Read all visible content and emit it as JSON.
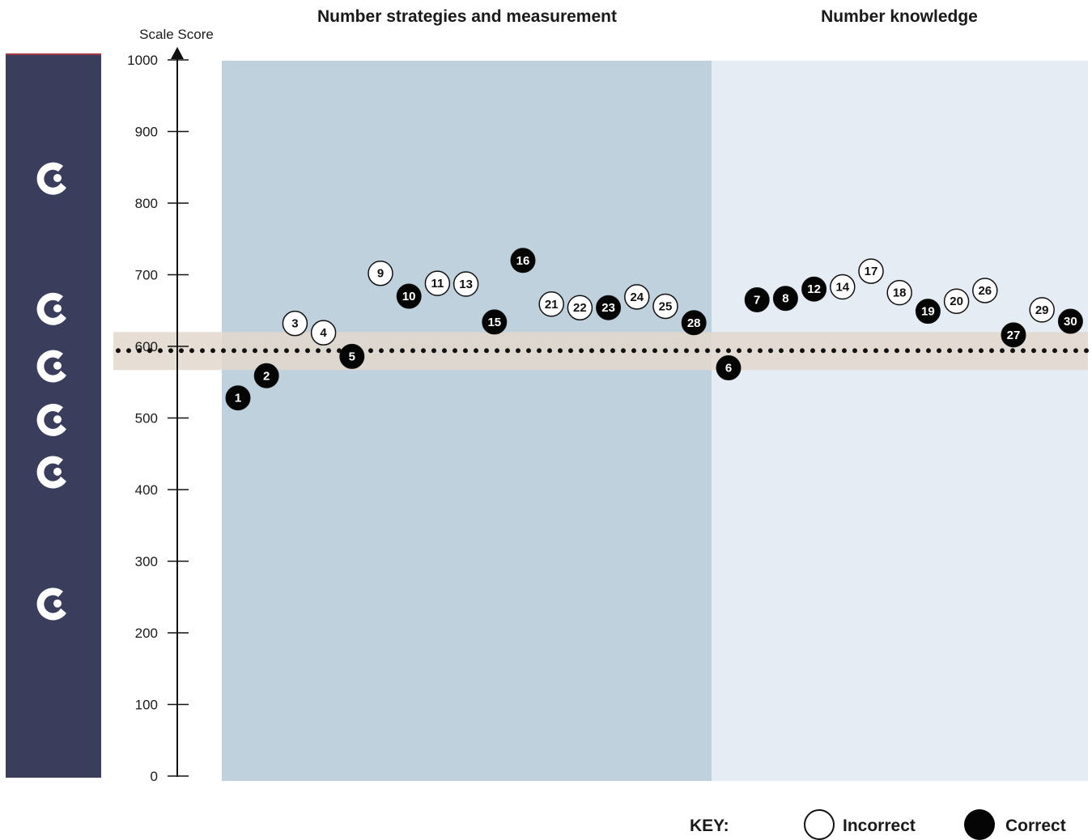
{
  "chart_data": {
    "type": "scatter",
    "ylabel": "Scale Score",
    "ylim": [
      0,
      1000
    ],
    "yticks": [
      "0",
      "100",
      "200",
      "300",
      "400",
      "500",
      "600",
      "700",
      "800",
      "900",
      "1000"
    ],
    "sections": [
      {
        "title": "Number strategies and measurement",
        "color": "#bfd1dc"
      },
      {
        "title": "Number knowledge",
        "color": "#e6ecf4"
      }
    ],
    "reference_line": 594,
    "reference_band": [
      567,
      620
    ],
    "key": {
      "label": "KEY:",
      "incorrect": "Incorrect",
      "correct": "Correct"
    },
    "points": [
      {
        "label": "1",
        "section": 0,
        "slot": 0,
        "y": 528,
        "correct": true
      },
      {
        "label": "2",
        "section": 0,
        "slot": 1,
        "y": 559,
        "correct": true
      },
      {
        "label": "3",
        "section": 0,
        "slot": 2,
        "y": 632,
        "correct": false
      },
      {
        "label": "4",
        "section": 0,
        "slot": 3,
        "y": 619,
        "correct": false
      },
      {
        "label": "5",
        "section": 0,
        "slot": 4,
        "y": 586,
        "correct": true
      },
      {
        "label": "9",
        "section": 0,
        "slot": 5,
        "y": 702,
        "correct": false
      },
      {
        "label": "10",
        "section": 0,
        "slot": 6,
        "y": 670,
        "correct": true
      },
      {
        "label": "11",
        "section": 0,
        "slot": 7,
        "y": 688,
        "correct": false
      },
      {
        "label": "13",
        "section": 0,
        "slot": 8,
        "y": 687,
        "correct": false
      },
      {
        "label": "15",
        "section": 0,
        "slot": 9,
        "y": 634,
        "correct": true
      },
      {
        "label": "16",
        "section": 0,
        "slot": 10,
        "y": 720,
        "correct": true
      },
      {
        "label": "21",
        "section": 0,
        "slot": 11,
        "y": 659,
        "correct": false
      },
      {
        "label": "22",
        "section": 0,
        "slot": 12,
        "y": 654,
        "correct": false
      },
      {
        "label": "23",
        "section": 0,
        "slot": 13,
        "y": 654,
        "correct": true
      },
      {
        "label": "24",
        "section": 0,
        "slot": 14,
        "y": 669,
        "correct": false
      },
      {
        "label": "25",
        "section": 0,
        "slot": 15,
        "y": 656,
        "correct": false
      },
      {
        "label": "28",
        "section": 0,
        "slot": 16,
        "y": 633,
        "correct": true
      },
      {
        "label": "6",
        "section": 1,
        "slot": 0,
        "y": 570,
        "correct": true
      },
      {
        "label": "7",
        "section": 1,
        "slot": 1,
        "y": 665,
        "correct": true
      },
      {
        "label": "8",
        "section": 1,
        "slot": 2,
        "y": 667,
        "correct": true
      },
      {
        "label": "12",
        "section": 1,
        "slot": 3,
        "y": 680,
        "correct": true
      },
      {
        "label": "14",
        "section": 1,
        "slot": 4,
        "y": 683,
        "correct": false
      },
      {
        "label": "17",
        "section": 1,
        "slot": 5,
        "y": 705,
        "correct": false
      },
      {
        "label": "18",
        "section": 1,
        "slot": 6,
        "y": 675,
        "correct": false
      },
      {
        "label": "19",
        "section": 1,
        "slot": 7,
        "y": 649,
        "correct": true
      },
      {
        "label": "20",
        "section": 1,
        "slot": 8,
        "y": 663,
        "correct": false
      },
      {
        "label": "26",
        "section": 1,
        "slot": 9,
        "y": 678,
        "correct": false
      },
      {
        "label": "27",
        "section": 1,
        "slot": 10,
        "y": 616,
        "correct": true
      },
      {
        "label": "29",
        "section": 1,
        "slot": 11,
        "y": 651,
        "correct": false
      },
      {
        "label": "30",
        "section": 1,
        "slot": 12,
        "y": 635,
        "correct": true
      }
    ]
  },
  "sidebar": {
    "color": "#3a3d5b",
    "icons": [
      {
        "name": "koru-icon",
        "y": 835
      },
      {
        "name": "koru-icon",
        "y": 653
      },
      {
        "name": "koru-icon",
        "y": 573
      },
      {
        "name": "koru-icon",
        "y": 498
      },
      {
        "name": "koru-icon",
        "y": 425
      },
      {
        "name": "koru-icon",
        "y": 241
      }
    ]
  }
}
